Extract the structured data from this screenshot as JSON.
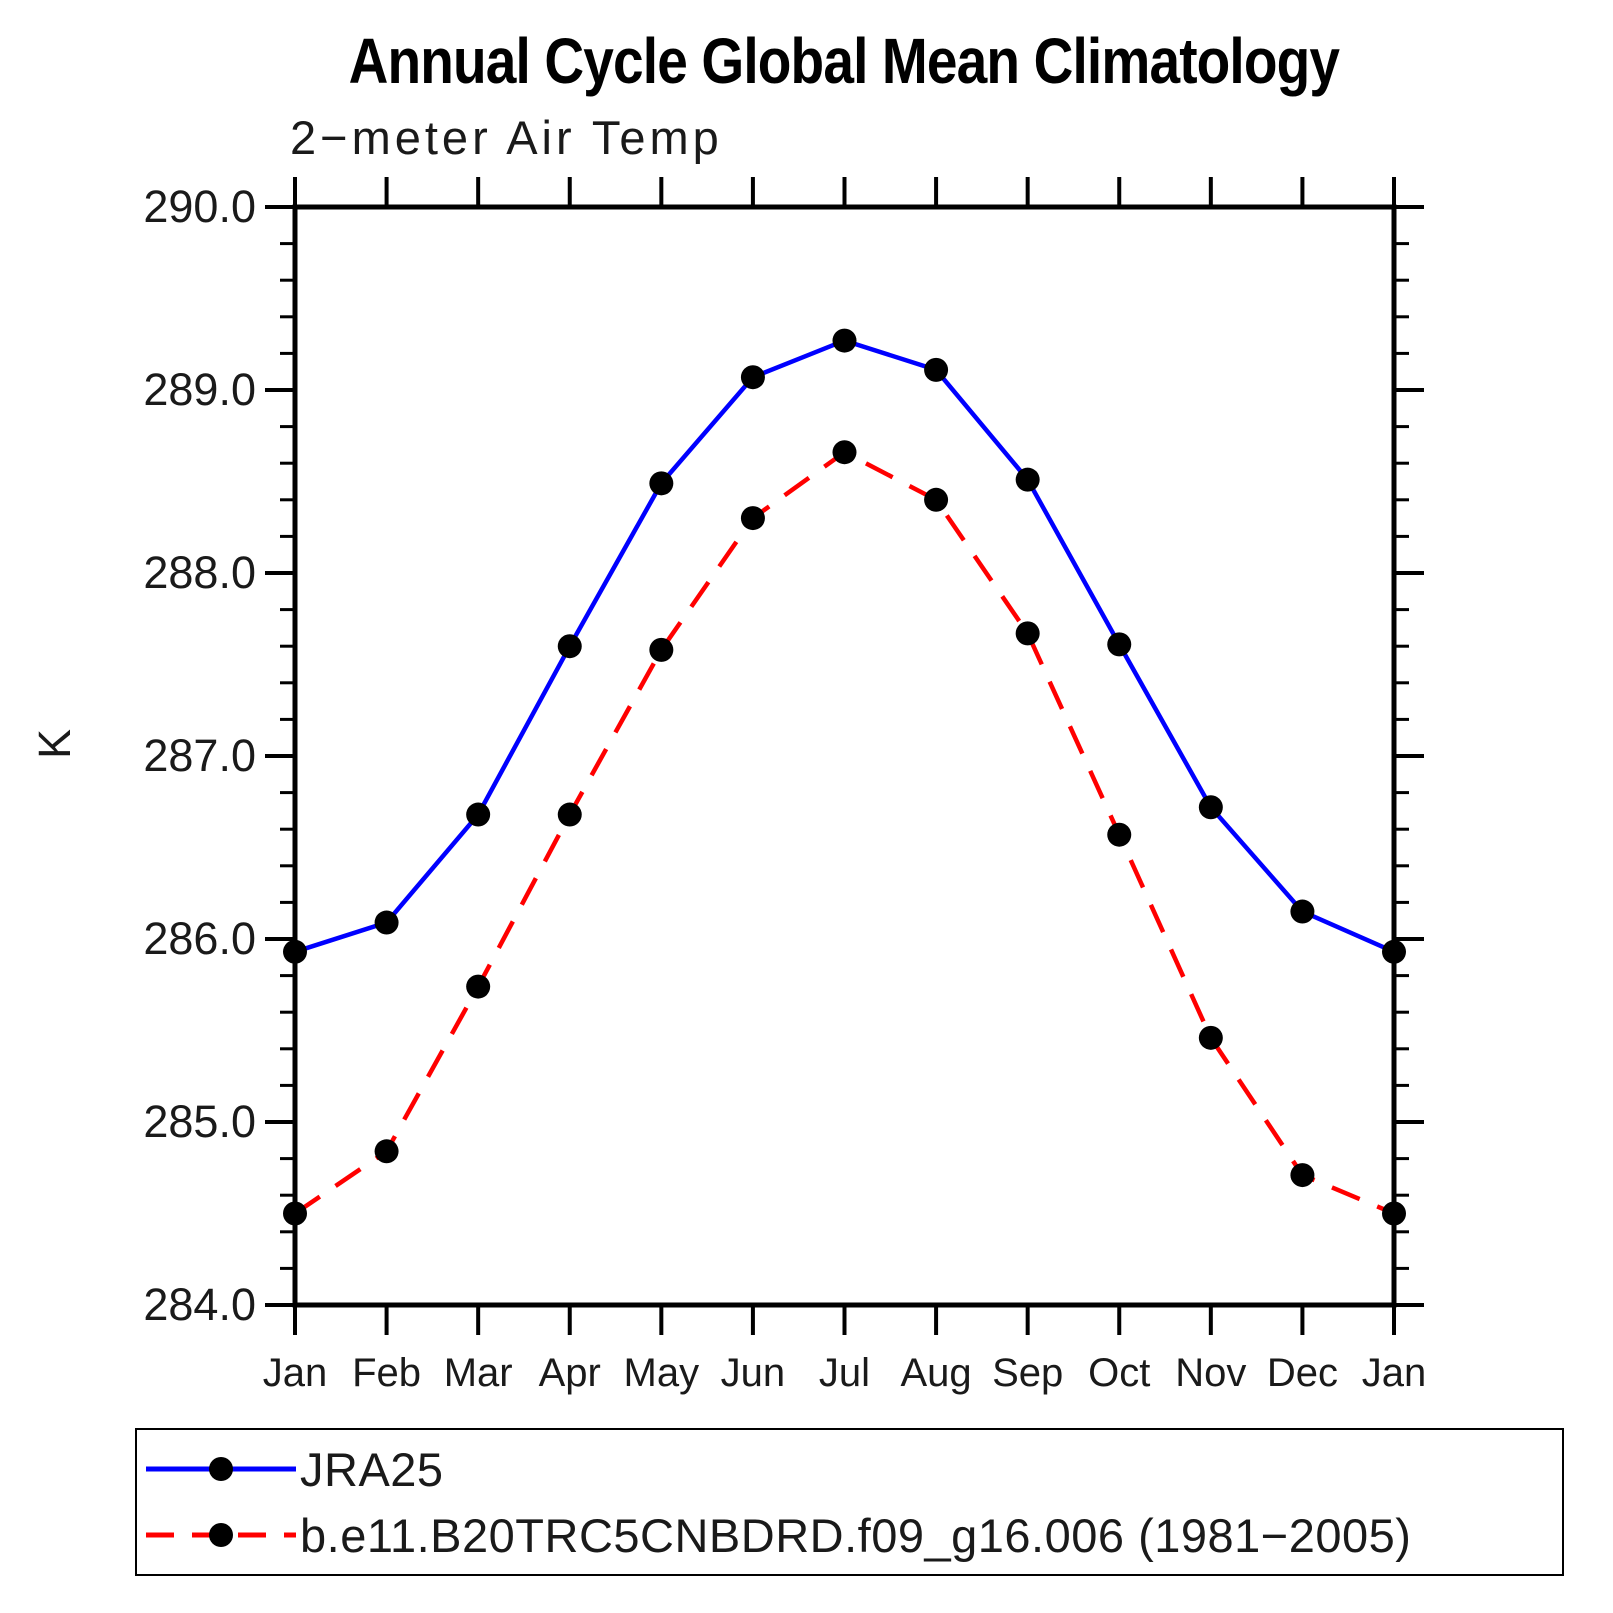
{
  "chart_data": {
    "type": "line",
    "title": "Annual Cycle Global Mean Climatology",
    "subtitle": "2−meter Air Temp",
    "ylabel": "K",
    "categories": [
      "Jan",
      "Feb",
      "Mar",
      "Apr",
      "May",
      "Jun",
      "Jul",
      "Aug",
      "Sep",
      "Oct",
      "Nov",
      "Dec",
      "Jan"
    ],
    "series": [
      {
        "name": "JRA25",
        "color": "#0000ff",
        "line_style": "solid",
        "marker": "filled-circle",
        "marker_color": "#000000",
        "values": [
          285.93,
          286.09,
          286.68,
          287.6,
          288.49,
          289.07,
          289.27,
          289.11,
          288.51,
          287.61,
          286.72,
          286.15,
          285.93
        ]
      },
      {
        "name": "b.e11.B20TRC5CNBDRD.f09_g16.006 (1981−2005)",
        "color": "#ff0000",
        "line_style": "dashed",
        "marker": "filled-circle",
        "marker_color": "#000000",
        "values": [
          284.5,
          284.84,
          285.74,
          286.68,
          287.58,
          288.3,
          288.66,
          288.4,
          287.67,
          286.57,
          285.46,
          284.71,
          284.5
        ]
      }
    ],
    "ylim": [
      284.0,
      290.0
    ],
    "ytick_major": 1.0,
    "ytick_minor": 0.2,
    "ytick_labels": [
      "284.0",
      "285.0",
      "286.0",
      "287.0",
      "288.0",
      "289.0",
      "290.0"
    ],
    "grid": false,
    "axis_color": "#000000",
    "legend_position": "bottom-box"
  }
}
